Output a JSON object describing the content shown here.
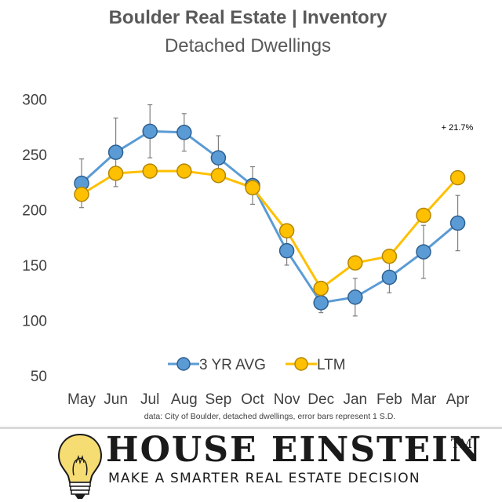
{
  "chart_data": {
    "type": "line",
    "title": "Boulder Real Estate | Inventory",
    "subtitle": "Detached Dwellings",
    "categories": [
      "May",
      "Jun",
      "Jul",
      "Aug",
      "Sep",
      "Oct",
      "Nov",
      "Dec",
      "Jan",
      "Feb",
      "Mar",
      "Apr"
    ],
    "series": [
      {
        "name": "3 YR AVG",
        "color": "#5b9bd5",
        "edge": "#2e5f8f",
        "values": [
          224,
          252,
          271,
          270,
          247,
          222,
          163,
          116,
          121,
          139,
          162,
          188
        ],
        "error_bars": [
          22,
          31,
          24,
          17,
          20,
          17,
          13,
          9,
          17,
          14,
          24,
          25
        ]
      },
      {
        "name": "LTM",
        "color": "#ffc000",
        "edge": "#b38600",
        "values": [
          214,
          233,
          235,
          235,
          231,
          220,
          181,
          129,
          152,
          158,
          195,
          229
        ]
      }
    ],
    "yticks": [
      50,
      100,
      150,
      200,
      250,
      300
    ],
    "ylim": [
      50,
      300
    ],
    "grid": false,
    "legend_position": "bottom-center",
    "annotation": "+ 21.7%",
    "note": "data: City of Boulder, detached dwellings, error bars represent 1 S.D."
  },
  "brand": {
    "name": "HOUSE EINSTEIN",
    "tm": "TM",
    "tagline": "MAKE A SMARTER REAL ESTATE DECISION"
  }
}
